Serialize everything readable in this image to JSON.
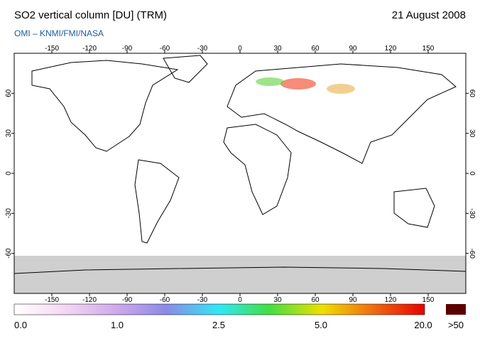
{
  "header": {
    "title": "SO2 vertical column [DU] (TRM)",
    "date": "21 August 2008",
    "subtitle": "OMI  –  KNMI/FMI/NASA"
  },
  "map": {
    "lonlim": [
      -180,
      180
    ],
    "latlim": [
      -90,
      90
    ],
    "lon_ticks": [
      -150,
      -120,
      -90,
      -60,
      -30,
      0,
      30,
      60,
      90,
      120,
      150
    ],
    "lat_ticks": [
      -60,
      -30,
      0,
      30,
      60
    ]
  },
  "colorbar": {
    "labels": [
      "0.0",
      "1.0",
      "2.5",
      "5.0",
      "20.0"
    ],
    "overflow": ">50"
  }
}
